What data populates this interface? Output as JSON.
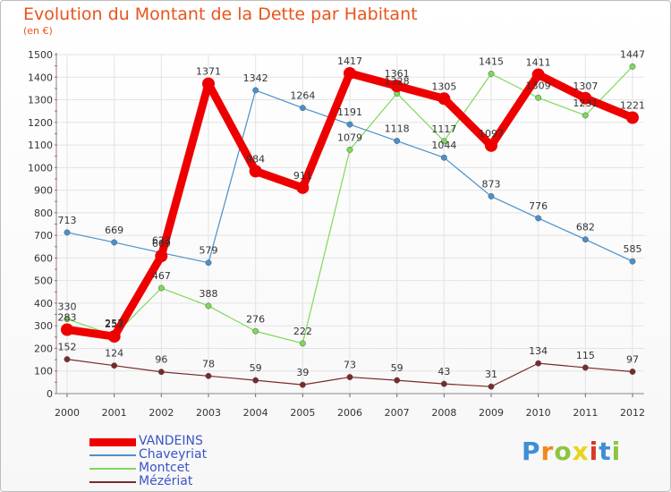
{
  "chart_data": {
    "type": "line",
    "title": "Evolution du Montant de la Dette par Habitant",
    "subtitle": "(en €)",
    "x": [
      "2000",
      "2001",
      "2002",
      "2003",
      "2004",
      "2005",
      "2006",
      "2007",
      "2008",
      "2009",
      "2010",
      "2011",
      "2012"
    ],
    "ylim": [
      0,
      1500
    ],
    "yticks": [
      0,
      100,
      200,
      300,
      400,
      500,
      600,
      700,
      800,
      900,
      1000,
      1100,
      1200,
      1300,
      1400,
      1500
    ],
    "grid": true,
    "legend_position": "bottom-left",
    "series": [
      {
        "name": "VANDEINS",
        "color": "#ee0000",
        "values": [
          283,
          253,
          609,
          1371,
          984,
          911,
          1417,
          1361,
          1305,
          1097,
          1411,
          1307,
          1221
        ]
      },
      {
        "name": "Chaveyriat",
        "color": "#4a90cc",
        "values": [
          713,
          669,
          623,
          579,
          1342,
          1264,
          1191,
          1118,
          1044,
          873,
          776,
          682,
          585
        ]
      },
      {
        "name": "Montcet",
        "color": "#7ed957",
        "values": [
          330,
          257,
          467,
          388,
          276,
          222,
          1079,
          1328,
          1117,
          1415,
          1309,
          1231,
          1447
        ]
      },
      {
        "name": "Mézériat",
        "color": "#7a2a2a",
        "values": [
          152,
          124,
          96,
          78,
          59,
          39,
          73,
          59,
          43,
          31,
          134,
          115,
          97
        ]
      }
    ]
  },
  "logo": {
    "letters": [
      "P",
      "r",
      "o",
      "x",
      "i",
      "t",
      "i"
    ],
    "colors": [
      "#3e8fd6",
      "#f08a1a",
      "#8cc63f",
      "#e8d51a",
      "#d9372a",
      "#3e8fd6",
      "#8cc63f"
    ]
  }
}
